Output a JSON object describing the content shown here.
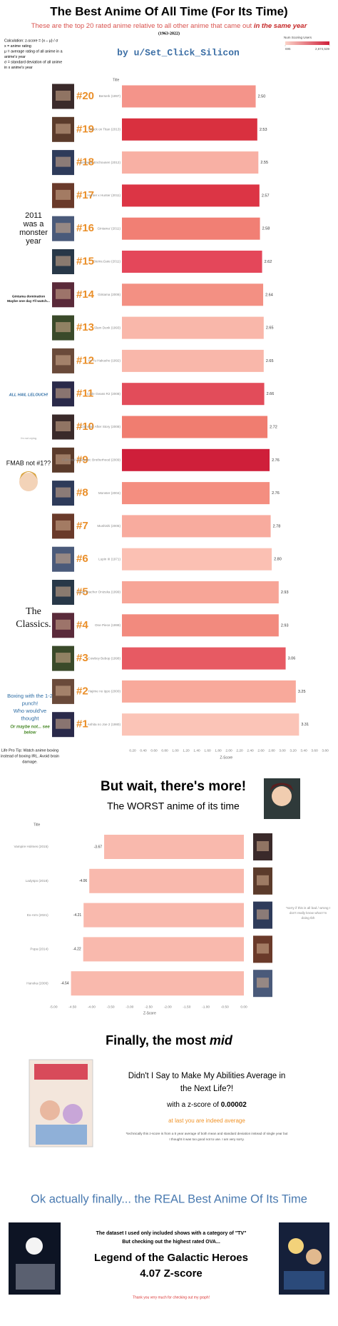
{
  "header": {
    "title": "The Best Anime Of All Time (For Its Time)",
    "subtitle": "These are the top 20 rated anime relative to all other anime that came out ",
    "subtitle_emphasis": "in the same year",
    "years": "(1963-2022)",
    "calculation": [
      "Calculation:  z-score = (x – μ) / σ",
      "x = anime rating",
      "μ = average rating of all anime in a",
      "anime's year",
      "σ = standard deviation of all anime",
      "in x anime's year"
    ],
    "author": "by u/Set_Click_Silicon"
  },
  "chart_data": [
    {
      "type": "bar",
      "category_header": "Title",
      "xlabel": "Z-Score",
      "ranks": [
        "#20",
        "#19",
        "#18",
        "#17",
        "#16",
        "#15",
        "#14",
        "#13",
        "#12",
        "#11",
        "#10",
        "#9",
        "#8",
        "#7",
        "#6",
        "#5",
        "#4",
        "#3",
        "#2",
        "#1"
      ],
      "categories": [
        "Berserk (1997)",
        "Attack on Titan (2013)",
        "Gintama' Enchousen (2012)",
        "Hunter x Hunter (2011)",
        "Gintama' (2011)",
        "Steins;Gate (2011)",
        "Gintama (2006)",
        "Slam Dunk (1993)",
        "Yu Yu Hakusho (1992)",
        "Code Geass R2 (2008)",
        "Clannad: After Story (2008)",
        "Fullmetal Alchemist: Brotherhood (2009)",
        "Monster (2004)",
        "Mushishi (2005)",
        "Lupin III (1971)",
        "Great Teacher Onizuka (1999)",
        "One Piece (1999)",
        "Cowboy Bebop (1998)",
        "Hajime no Ippo (2000)",
        "Ashita no Joe 2 (1980)"
      ],
      "values": [
        2.5,
        2.53,
        2.55,
        2.57,
        2.58,
        2.62,
        2.64,
        2.65,
        2.65,
        2.66,
        2.72,
        2.76,
        2.76,
        2.78,
        2.8,
        2.93,
        2.93,
        3.06,
        3.25,
        3.31
      ],
      "value_labels": [
        "2.50",
        "2.53",
        "2.55",
        "2.57",
        "2.58",
        "2.62",
        "2.64",
        "2.65",
        "2.65",
        "2.66",
        "2.72",
        "2.76",
        "2.76",
        "2.78",
        "2.80",
        "2.93",
        "2.93",
        "3.06",
        "3.25",
        "3.31"
      ],
      "colors": [
        "#f4948a",
        "#d9303f",
        "#f8b0a4",
        "#dc3545",
        "#f17f74",
        "#e4475a",
        "#f39083",
        "#f9b7aa",
        "#f9b7aa",
        "#e24c5a",
        "#f07d70",
        "#cf1f3a",
        "#f48e80",
        "#f8ab9e",
        "#fbc0b3",
        "#f7a597",
        "#f28a7e",
        "#e75a63",
        "#f8a99b",
        "#fbc4b7"
      ],
      "xlim": [
        0,
        3.9
      ],
      "xticks": [
        {
          "value": 0.2,
          "label": "0.20"
        },
        {
          "value": 0.4,
          "label": "0.40"
        },
        {
          "value": 0.6,
          "label": "0.60"
        },
        {
          "value": 0.8,
          "label": "0.80"
        },
        {
          "value": 1,
          "label": "1.00"
        },
        {
          "value": 1.2,
          "label": "1.20"
        },
        {
          "value": 1.4,
          "label": "1.40"
        },
        {
          "value": 1.6,
          "label": "1.60"
        },
        {
          "value": 1.8,
          "label": "1.80"
        },
        {
          "value": 2,
          "label": "2.00"
        },
        {
          "value": 2.2,
          "label": "2.20"
        },
        {
          "value": 2.4,
          "label": "2.40"
        },
        {
          "value": 2.6,
          "label": "2.60"
        },
        {
          "value": 2.8,
          "label": "2.80"
        },
        {
          "value": 3,
          "label": "3.00"
        },
        {
          "value": 3.2,
          "label": "3.20"
        },
        {
          "value": 3.4,
          "label": "3.40"
        },
        {
          "value": 3.6,
          "label": "3.60"
        },
        {
          "value": 3.8,
          "label": "3.80"
        }
      ],
      "color_scale": {
        "title": "Num Scoring Users",
        "min": 695,
        "max": {
          "value": 2674539,
          "label": "2,674,539"
        },
        "colors": [
          "#fbd3c8",
          "#cf1f3a"
        ]
      }
    },
    {
      "type": "bar",
      "category_header": "Title",
      "xlabel": "Z-Score",
      "categories": [
        "Vampire Holmes (2015)",
        "Ladyspo (2018)",
        "Ex-Arm (2021)",
        "Pupa (2014)",
        "Hanoka (2006)"
      ],
      "values": [
        -3.67,
        -4.06,
        -4.21,
        -4.22,
        -4.54
      ],
      "colors": [
        "#f9b9ad",
        "#f9b9ad",
        "#f9b9ad",
        "#f9b9ad",
        "#f9b9ad"
      ],
      "xlim": [
        -5.1,
        0.15
      ],
      "xticks": [
        {
          "value": -5,
          "label": "-5.00"
        },
        {
          "value": -4.5,
          "label": "-4.50"
        },
        {
          "value": -4,
          "label": "-4.00"
        },
        {
          "value": -3.5,
          "label": "-3.50"
        },
        {
          "value": -3,
          "label": "-3.00"
        },
        {
          "value": -2.5,
          "label": "-2.50"
        },
        {
          "value": -2,
          "label": "-2.00"
        },
        {
          "value": -1.5,
          "label": "-1.50"
        },
        {
          "value": -1,
          "label": "-1.00"
        },
        {
          "value": -0.5,
          "label": "-0.50"
        },
        {
          "value": 0,
          "label": "0.00"
        }
      ]
    }
  ],
  "best_notes": [
    [
      "2011",
      "was a",
      "monster",
      "year"
    ],
    [
      "Gintama domination",
      "Maybe one day I'll watch..."
    ],
    [
      "ALL HAIL LELOUCH!"
    ],
    [
      "i'm not crying"
    ],
    [
      "FMAB not #1??"
    ],
    [
      "The",
      "Classics."
    ],
    [
      "Boxing with the 1-2",
      "punch!",
      "Who would've",
      "thought"
    ],
    [
      "Or maybe not... see",
      "below"
    ],
    [
      "Life Pro Tip: Watch anime boxing",
      "instead of boxing IRL. Avoid brain",
      "damage."
    ]
  ],
  "more": {
    "title": "But wait, there's more!",
    "subtitle": "The WORST anime of its time",
    "note": [
      "*sorry if this is all bad / wrong I",
      "don't really know what I'm",
      "doing tbh"
    ]
  },
  "mid": {
    "title": "Finally, the most ",
    "title_emphasis": "mid",
    "anime": [
      "Didn't I Say to Make My Abilities Average in",
      "the Next Life?!"
    ],
    "score_prefix": "with a z-score of ",
    "score": "0.00002",
    "quip": "at last you are indeed average",
    "footnote": [
      "*technically this z-score is from a 5 year average of both mean and standard deviation instead of single year but",
      "I thought it was too good not to use. I am very sorry."
    ]
  },
  "finale": {
    "title": "Ok actually finally... the REAL Best Anime Of Its Time",
    "lines": [
      "The dataset I used only included shows with a category of \"TV\"",
      "But checking out the highest rated OVA..."
    ],
    "anime": "Legend of the Galactic Heroes",
    "score": "4.07 Z-score",
    "thanks": "Thank you very much for checking out my graph!"
  }
}
